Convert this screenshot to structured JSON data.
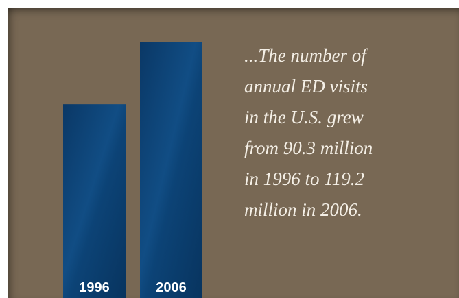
{
  "chart_data": {
    "type": "bar",
    "categories": [
      "1996",
      "2006"
    ],
    "values": [
      90.3,
      119.2
    ],
    "ylim": [
      0,
      121
    ],
    "bar_color": "#0c4476"
  },
  "caption": {
    "lines": [
      "...The number of",
      "annual ED visits",
      "in the U.S. grew",
      "from 90.3 million",
      "in 1996 to 119.2",
      "million in 2006."
    ]
  }
}
